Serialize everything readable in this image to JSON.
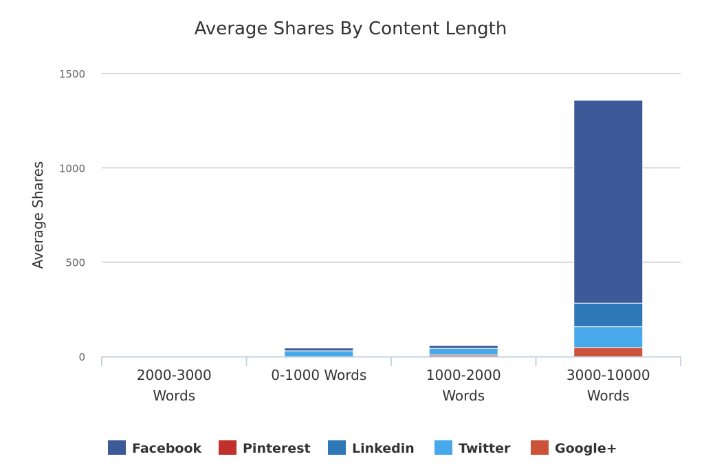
{
  "chart_data": {
    "type": "bar",
    "stacked": true,
    "title": "Average Shares By Content Length",
    "xlabel": "",
    "ylabel": "Average Shares",
    "ylim": [
      0,
      1500
    ],
    "yticks": [
      0,
      500,
      1000,
      1500
    ],
    "grid": true,
    "legend_position": "bottom",
    "categories": [
      "2000-3000 Words",
      "0-1000 Words",
      "1000-2000 Words",
      "3000-10000 Words"
    ],
    "category_lines": [
      [
        "2000-3000",
        "Words"
      ],
      [
        "0-1000 Words"
      ],
      [
        "1000-2000",
        "Words"
      ],
      [
        "3000-10000",
        "Words"
      ]
    ],
    "series": [
      {
        "name": "Facebook",
        "color": "#3d5a98",
        "values": [
          0,
          15,
          15,
          1075
        ]
      },
      {
        "name": "Pinterest",
        "color": "#c0302c",
        "values": [
          0,
          0,
          0,
          0
        ]
      },
      {
        "name": "Linkedin",
        "color": "#2e78b7",
        "values": [
          0,
          0,
          0,
          125
        ]
      },
      {
        "name": "Twitter",
        "color": "#47a9ea",
        "values": [
          0,
          30,
          35,
          110
        ]
      },
      {
        "name": "Google+",
        "color": "#cc523a",
        "values": [
          0,
          0,
          8,
          48
        ]
      }
    ],
    "stack_order_bottom_to_top": [
      "Google+",
      "Pinterest",
      "Twitter",
      "Linkedin",
      "Facebook"
    ]
  },
  "colors": {
    "grid": "#c8c8c8",
    "axis": "#c6d2e3",
    "background": "#ffffff"
  }
}
